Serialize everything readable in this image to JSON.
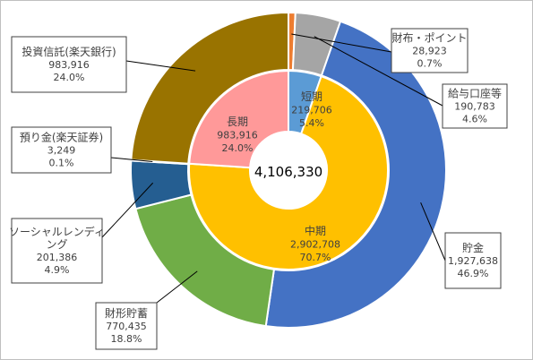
{
  "chart_data": {
    "type": "doughnut",
    "center_label": "4,106,330",
    "inner_ring": {
      "series": [
        {
          "name": "短期",
          "value": 219706,
          "value_label": "219,706",
          "percent_label": "5.4%",
          "color": "#5b9bd5"
        },
        {
          "name": "中期",
          "value": 2902708,
          "value_label": "2,902,708",
          "percent_label": "70.7%",
          "color": "#ffc000"
        },
        {
          "name": "長期",
          "value": 983916,
          "value_label": "983,916",
          "percent_label": "24.0%",
          "color": "#ff9999"
        }
      ]
    },
    "outer_ring": {
      "series": [
        {
          "name": "財布・ポイント",
          "value": 28923,
          "value_label": "28,923",
          "percent_label": "0.7%",
          "color": "#ed7d31"
        },
        {
          "name": "給与口座等",
          "value": 190783,
          "value_label": "190,783",
          "percent_label": "4.6%",
          "color": "#a5a5a5"
        },
        {
          "name": "貯金",
          "value": 1927638,
          "value_label": "1,927,638",
          "percent_label": "46.9%",
          "color": "#4472c4"
        },
        {
          "name": "財形貯蓄",
          "value": 770435,
          "value_label": "770,435",
          "percent_label": "18.8%",
          "color": "#70ad47"
        },
        {
          "name": "ソーシャルレンディング",
          "value": 201386,
          "value_label": "201,386",
          "percent_label": "4.9%",
          "color": "#255e91"
        },
        {
          "name": "預り金(楽天証券)",
          "value": 3249,
          "value_label": "3,249",
          "percent_label": "0.1%",
          "color": "#636363"
        },
        {
          "name": "投資信託(楽天銀行)",
          "value": 983916,
          "value_label": "983,916",
          "percent_label": "24.0%",
          "color": "#997300"
        }
      ]
    }
  }
}
